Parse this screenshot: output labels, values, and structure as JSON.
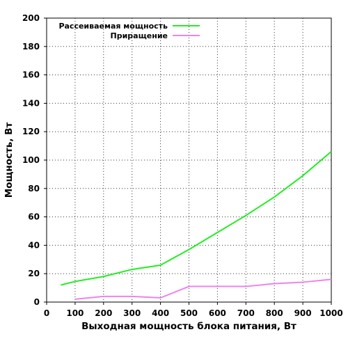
{
  "chart_data": {
    "type": "line",
    "title": "",
    "xlabel": "Выходная мощность блока питания, Вт",
    "ylabel": "Мощность, Вт",
    "xlim": [
      0,
      1000
    ],
    "ylim": [
      0,
      200
    ],
    "x_ticks": [
      0,
      100,
      200,
      300,
      400,
      500,
      600,
      700,
      800,
      900,
      1000
    ],
    "y_ticks": [
      0,
      20,
      40,
      60,
      80,
      100,
      120,
      140,
      160,
      180,
      200
    ],
    "grid": true,
    "legend_position": "top-right",
    "series": [
      {
        "name": "Рассеиваемая мощность",
        "color": "#22ee22",
        "x": [
          50,
          100,
          200,
          300,
          400,
          500,
          600,
          700,
          800,
          900,
          1000
        ],
        "y": [
          12,
          14.5,
          18,
          23,
          26,
          37,
          49,
          61,
          74,
          89,
          106
        ]
      },
      {
        "name": "Приращение",
        "color": "#ee82ee",
        "x": [
          100,
          200,
          300,
          400,
          500,
          600,
          700,
          800,
          900,
          1000
        ],
        "y": [
          2,
          4,
          4,
          3,
          11,
          11,
          11,
          13,
          14,
          16
        ]
      }
    ]
  }
}
